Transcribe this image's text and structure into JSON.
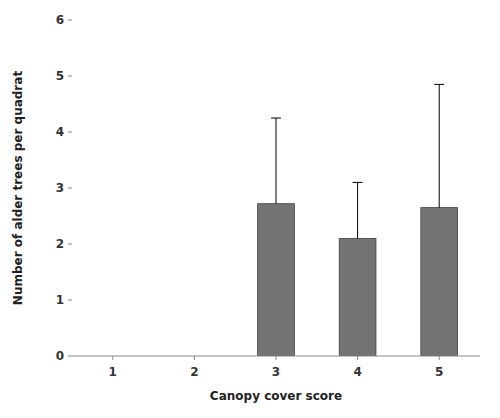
{
  "chart_data": {
    "type": "bar",
    "x": [
      3,
      4,
      5
    ],
    "values": [
      2.72,
      2.1,
      2.65
    ],
    "error_upper": [
      1.53,
      1.0,
      2.2
    ],
    "color": "#737373",
    "xlabel": "Canopy cover score",
    "ylabel": "Number of alder trees per quadrat",
    "xlim": [
      0.5,
      5.5
    ],
    "xticks": [
      1,
      2,
      3,
      4,
      5
    ],
    "ylim": [
      0,
      6
    ],
    "yticks": [
      0,
      1,
      2,
      3,
      4,
      5,
      6
    ],
    "grid": false
  }
}
